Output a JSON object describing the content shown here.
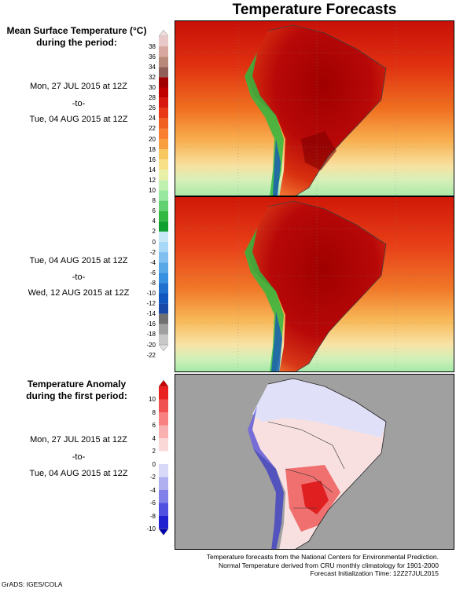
{
  "title": "Temperature Forecasts",
  "panel1": {
    "heading_line1": "Mean Surface Temperature (°C)",
    "heading_line2": "during the period:",
    "start": "Mon, 27 JUL 2015 at 12Z",
    "sep": "-to-",
    "end": "Tue, 04 AUG 2015 at 12Z"
  },
  "panel2": {
    "start": "Tue, 04 AUG 2015 at 12Z",
    "sep": "-to-",
    "end": "Wed, 12 AUG 2015 at 12Z"
  },
  "panel3": {
    "heading_line1": "Temperature Anomaly",
    "heading_line2": "during the first period:",
    "start": "Mon, 27 JUL 2015 at 12Z",
    "sep": "-to-",
    "end": "Tue, 04 AUG 2015 at 12Z"
  },
  "temp_colorbar": {
    "labels": [
      "38",
      "36",
      "34",
      "32",
      "30",
      "28",
      "26",
      "24",
      "22",
      "20",
      "18",
      "16",
      "14",
      "12",
      "10",
      "8",
      "6",
      "4",
      "2",
      "0",
      "-2",
      "-4",
      "-6",
      "-8",
      "-10",
      "-12",
      "-14",
      "-16",
      "-18",
      "-20",
      "-22"
    ],
    "colors": [
      "#f0dede",
      "#e8c8c8",
      "#d8a8a0",
      "#b88878",
      "#906058",
      "#a00000",
      "#c00000",
      "#d81810",
      "#e83818",
      "#f06020",
      "#f88030",
      "#f8a040",
      "#f8c860",
      "#f8e088",
      "#e8f0a8",
      "#c0f0b0",
      "#98e8a0",
      "#60d070",
      "#30b840",
      "#10a030",
      "#c8e8f8",
      "#a8d8f8",
      "#80c0f0",
      "#58a8e8",
      "#3890e0",
      "#2070d0",
      "#1058c0",
      "#1848a8",
      "#707070",
      "#a0a0a0",
      "#c8c8c8",
      "#e0e0e0"
    ]
  },
  "anomaly_colorbar": {
    "labels": [
      "10",
      "8",
      "6",
      "4",
      "2",
      "0",
      "-2",
      "-4",
      "-6",
      "-8",
      "-10"
    ],
    "colors": [
      "#c80000",
      "#e82020",
      "#f05050",
      "#f88080",
      "#f8b0b0",
      "#fbd8d8",
      "#ffffff",
      "#d8d8f8",
      "#b0b0f0",
      "#8080e8",
      "#5050e0",
      "#2020d0",
      "#0000b0"
    ]
  },
  "footnote": {
    "line1": "Temperature forecasts from the National Centers for Environmental Prediction.",
    "line2": "Normal Temperature derived from CRU monthly climatology for 1901-2000",
    "line3": "Forecast Initialization Time: 12Z27JUL2015"
  },
  "credit": "GrADS: IGES/COLA"
}
